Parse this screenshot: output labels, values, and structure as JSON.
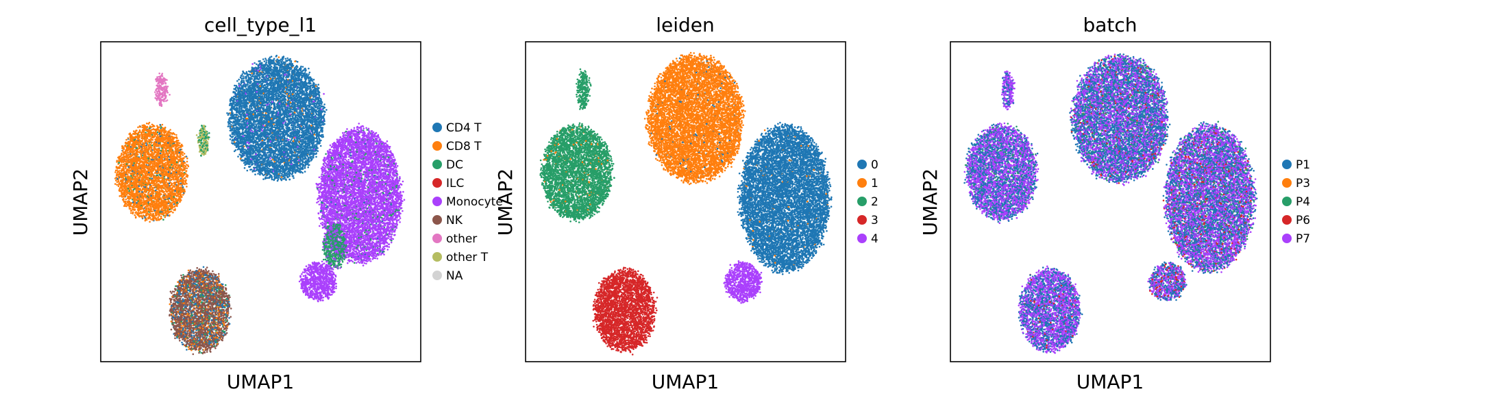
{
  "chart_data": [
    {
      "type": "scatter",
      "title": "cell_type_l1",
      "xlabel": "UMAP1",
      "ylabel": "UMAP2",
      "xlim": [
        0,
        100
      ],
      "ylim": [
        0,
        100
      ],
      "xticks": [],
      "yticks": [],
      "legend_placement": "right",
      "categories": [
        {
          "name": "CD4 T",
          "color": "#1f77b4"
        },
        {
          "name": "CD8 T",
          "color": "#ff7f0e"
        },
        {
          "name": "DC",
          "color": "#279e68"
        },
        {
          "name": "ILC",
          "color": "#d62728"
        },
        {
          "name": "Monocyte",
          "color": "#aa40fc"
        },
        {
          "name": "NK",
          "color": "#8c564b"
        },
        {
          "name": "other",
          "color": "#e377c2"
        },
        {
          "name": "other T",
          "color": "#b5bd61"
        },
        {
          "name": "NA",
          "color": "#d3d3d3"
        }
      ],
      "clusters": [
        {
          "cx": 55,
          "cy": 76,
          "rx": 15,
          "ry": 19,
          "mix": [
            [
              0,
              0.96
            ],
            [
              1,
              0.02
            ],
            [
              4,
              0.02
            ]
          ]
        },
        {
          "cx": 16,
          "cy": 59,
          "rx": 11,
          "ry": 15,
          "mix": [
            [
              1,
              0.92
            ],
            [
              0,
              0.05
            ],
            [
              2,
              0.03
            ]
          ]
        },
        {
          "cx": 81,
          "cy": 52,
          "rx": 13,
          "ry": 21,
          "mix": [
            [
              4,
              0.94
            ],
            [
              2,
              0.05
            ],
            [
              0,
              0.01
            ]
          ]
        },
        {
          "cx": 73,
          "cy": 36,
          "rx": 3.5,
          "ry": 7,
          "mix": [
            [
              2,
              0.75
            ],
            [
              4,
              0.25
            ]
          ]
        },
        {
          "cx": 68,
          "cy": 25,
          "rx": 5.5,
          "ry": 6,
          "mix": [
            [
              4,
              1.0
            ]
          ]
        },
        {
          "cx": 31,
          "cy": 16,
          "rx": 9.5,
          "ry": 13,
          "mix": [
            [
              5,
              0.7
            ],
            [
              0,
              0.15
            ],
            [
              1,
              0.1
            ],
            [
              2,
              0.05
            ]
          ]
        },
        {
          "cx": 19,
          "cy": 85,
          "rx": 1.7,
          "ry": 5,
          "mix": [
            [
              6,
              1.0
            ]
          ]
        },
        {
          "cx": 32,
          "cy": 69,
          "rx": 1.5,
          "ry": 5,
          "mix": [
            [
              7,
              0.5
            ],
            [
              2,
              0.5
            ]
          ]
        }
      ]
    },
    {
      "type": "scatter",
      "title": "leiden",
      "xlabel": "UMAP1",
      "ylabel": "UMAP2",
      "xlim": [
        0,
        100
      ],
      "ylim": [
        0,
        100
      ],
      "xticks": [],
      "yticks": [],
      "legend_placement": "right",
      "categories": [
        {
          "name": "0",
          "color": "#1f77b4"
        },
        {
          "name": "1",
          "color": "#ff7f0e"
        },
        {
          "name": "2",
          "color": "#279e68"
        },
        {
          "name": "3",
          "color": "#d62728"
        },
        {
          "name": "4",
          "color": "#aa40fc"
        }
      ],
      "clusters": [
        {
          "cx": 53,
          "cy": 76,
          "rx": 15,
          "ry": 20,
          "mix": [
            [
              1,
              0.98
            ],
            [
              0,
              0.02
            ]
          ]
        },
        {
          "cx": 16,
          "cy": 59,
          "rx": 11,
          "ry": 15,
          "mix": [
            [
              2,
              0.98
            ],
            [
              1,
              0.02
            ]
          ]
        },
        {
          "cx": 81,
          "cy": 51,
          "rx": 14,
          "ry": 23,
          "mix": [
            [
              0,
              0.99
            ],
            [
              1,
              0.01
            ]
          ]
        },
        {
          "cx": 68,
          "cy": 25,
          "rx": 5.5,
          "ry": 6,
          "mix": [
            [
              4,
              1.0
            ]
          ]
        },
        {
          "cx": 31,
          "cy": 16,
          "rx": 9.5,
          "ry": 13,
          "mix": [
            [
              3,
              1.0
            ]
          ]
        },
        {
          "cx": 18,
          "cy": 85,
          "rx": 1.7,
          "ry": 6,
          "mix": [
            [
              2,
              1.0
            ]
          ]
        }
      ]
    },
    {
      "type": "scatter",
      "title": "batch",
      "xlabel": "UMAP1",
      "ylabel": "UMAP2",
      "xlim": [
        0,
        100
      ],
      "ylim": [
        0,
        100
      ],
      "xticks": [],
      "yticks": [],
      "legend_placement": "right",
      "categories": [
        {
          "name": "P1",
          "color": "#1f77b4"
        },
        {
          "name": "P3",
          "color": "#ff7f0e"
        },
        {
          "name": "P4",
          "color": "#279e68"
        },
        {
          "name": "P6",
          "color": "#d62728"
        },
        {
          "name": "P7",
          "color": "#aa40fc"
        }
      ],
      "clusters": [
        {
          "cx": 53,
          "cy": 76,
          "rx": 15,
          "ry": 20,
          "mix": [
            [
              0,
              0.5
            ],
            [
              4,
              0.42
            ],
            [
              2,
              0.05
            ],
            [
              3,
              0.03
            ]
          ]
        },
        {
          "cx": 16,
          "cy": 59,
          "rx": 11,
          "ry": 15,
          "mix": [
            [
              4,
              0.55
            ],
            [
              0,
              0.4
            ],
            [
              2,
              0.05
            ]
          ]
        },
        {
          "cx": 81,
          "cy": 51,
          "rx": 14,
          "ry": 23,
          "mix": [
            [
              4,
              0.5
            ],
            [
              0,
              0.4
            ],
            [
              3,
              0.05
            ],
            [
              2,
              0.05
            ]
          ]
        },
        {
          "cx": 68,
          "cy": 25,
          "rx": 5.5,
          "ry": 6,
          "mix": [
            [
              4,
              0.5
            ],
            [
              0,
              0.4
            ],
            [
              3,
              0.1
            ]
          ]
        },
        {
          "cx": 31,
          "cy": 16,
          "rx": 9.5,
          "ry": 13,
          "mix": [
            [
              4,
              0.55
            ],
            [
              0,
              0.42
            ],
            [
              3,
              0.03
            ]
          ]
        },
        {
          "cx": 18,
          "cy": 85,
          "rx": 1.7,
          "ry": 6,
          "mix": [
            [
              4,
              0.7
            ],
            [
              0,
              0.3
            ]
          ]
        }
      ]
    }
  ]
}
